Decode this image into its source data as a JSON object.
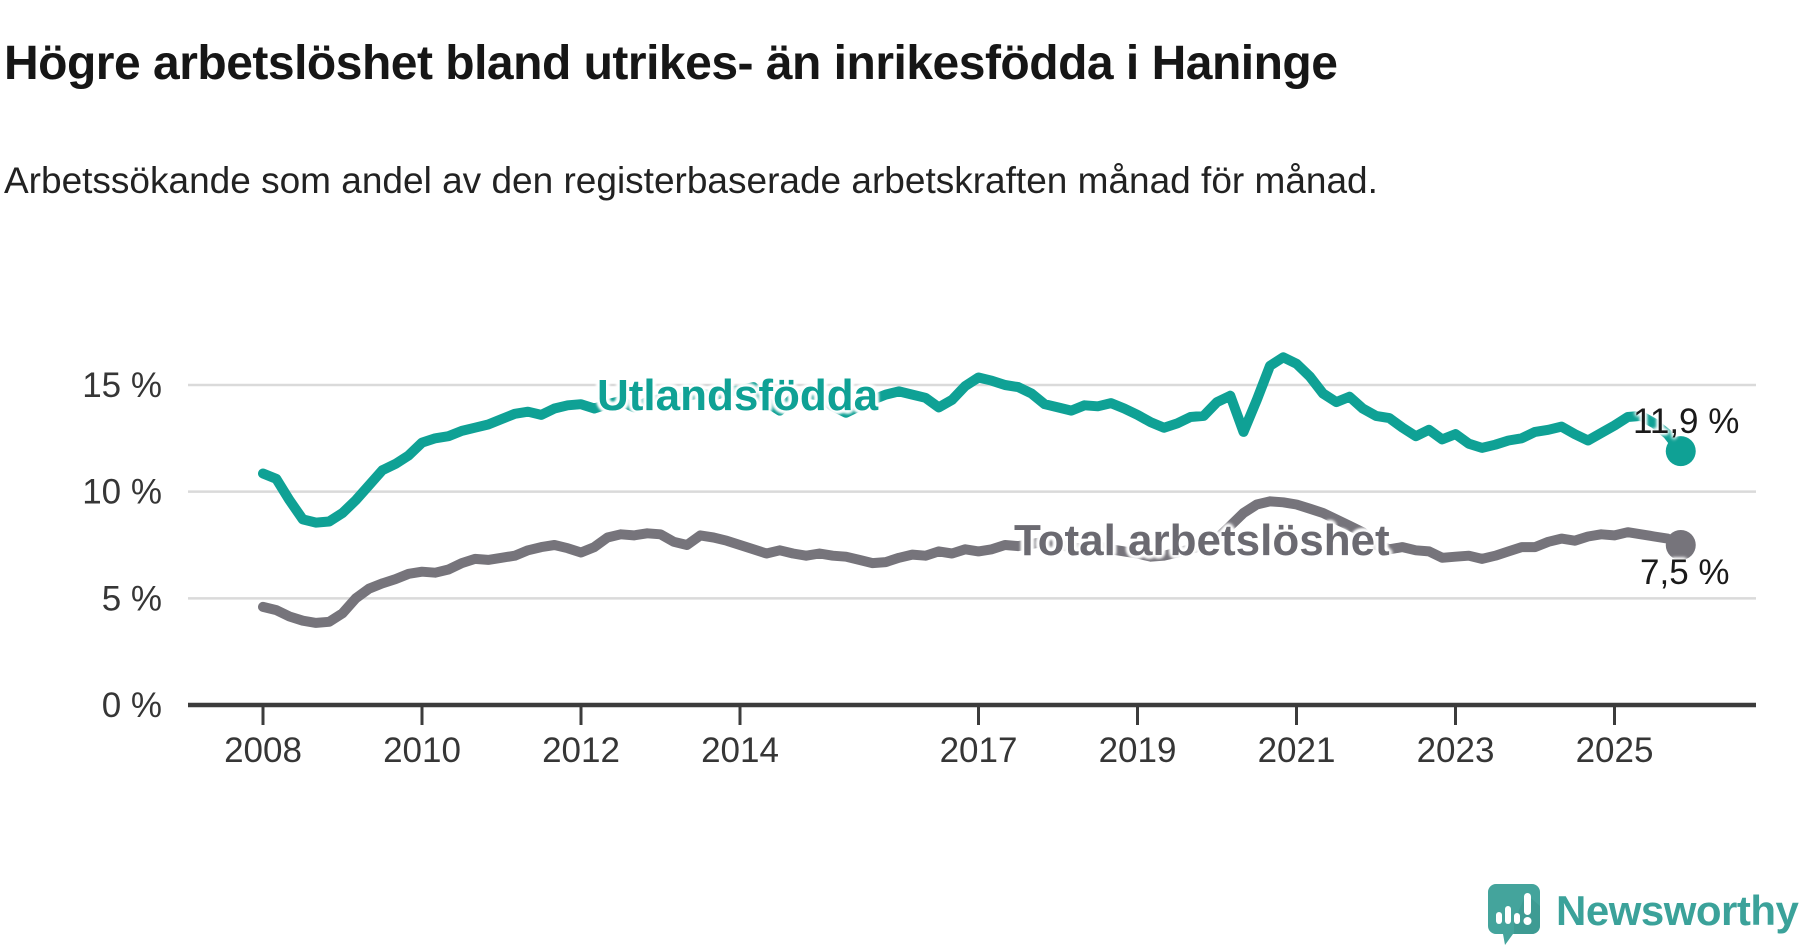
{
  "title": "Högre arbetslöshet bland utrikes- än inrikesfödda i Haninge",
  "subtitle": "Arbetssökande som andel av den registerbaserade arbetskraften månad för månad.",
  "colors": {
    "foreign_line": "#0fa195",
    "total_line": "#76747b",
    "total_label": "#6b6a71",
    "grid": "#dadada",
    "axis": "#3c3c3c",
    "axis_text": "#363636",
    "value_label_text": "#1a1a1a",
    "brand_teal": "#3ba29a"
  },
  "chart_data": {
    "type": "line",
    "title": "Högre arbetslöshet bland utrikes- än inrikesfödda i Haninge",
    "subtitle": "Arbetssökande som andel av den registerbaserade arbetskraften månad för månad.",
    "grid": true,
    "unit": "%",
    "x_start_year": 2008,
    "x_step_months": 2,
    "x_axis": {
      "tick_years": [
        2008,
        2010,
        2012,
        2014,
        2017,
        2019,
        2021,
        2023,
        2025
      ],
      "tick_labels": [
        "2008",
        "2010",
        "2012",
        "2014",
        "2017",
        "2019",
        "2021",
        "2023",
        "2025"
      ]
    },
    "y_axis": {
      "tick_values": [
        0,
        5,
        10,
        15
      ],
      "tick_labels": [
        "0 %",
        "5 %",
        "10 %",
        "15 %"
      ],
      "range": [
        0,
        16.8
      ]
    },
    "legend_position": "inline-line-labels",
    "series": [
      {
        "name": "Utlandsfödda",
        "color": "#0fa195",
        "end_value": 11.9,
        "end_value_label": "11,9 %",
        "values": [
          10.85,
          10.6,
          9.6,
          8.7,
          8.55,
          8.6,
          9.0,
          9.6,
          10.3,
          11.0,
          11.3,
          11.7,
          12.3,
          12.5,
          12.6,
          12.85,
          13.0,
          13.15,
          13.4,
          13.65,
          13.75,
          13.6,
          13.9,
          14.05,
          14.1,
          13.9,
          14.1,
          14.25,
          13.95,
          14.2,
          14.35,
          14.3,
          14.5,
          14.6,
          14.5,
          14.7,
          14.75,
          14.9,
          14.2,
          13.8,
          14.4,
          14.6,
          14.5,
          14.0,
          13.7,
          14.0,
          14.3,
          14.55,
          14.7,
          14.55,
          14.4,
          13.95,
          14.3,
          14.95,
          15.35,
          15.2,
          15.0,
          14.9,
          14.6,
          14.1,
          13.95,
          13.8,
          14.05,
          14.0,
          14.15,
          13.9,
          13.6,
          13.25,
          13.0,
          13.2,
          13.5,
          13.55,
          14.2,
          14.5,
          12.8,
          14.3,
          15.9,
          16.3,
          16.0,
          15.4,
          14.6,
          14.2,
          14.45,
          13.9,
          13.55,
          13.45,
          13.0,
          12.6,
          12.9,
          12.45,
          12.7,
          12.25,
          12.05,
          12.2,
          12.4,
          12.5,
          12.8,
          12.9,
          13.05,
          12.7,
          12.4,
          12.75,
          13.1,
          13.5,
          13.55,
          13.2,
          12.7,
          11.9
        ]
      },
      {
        "name": "Total arbetslöshet",
        "color": "#76747b",
        "end_value": 7.5,
        "end_value_label": "7,5 %",
        "values": [
          4.6,
          4.45,
          4.15,
          3.95,
          3.85,
          3.9,
          4.3,
          5.0,
          5.45,
          5.7,
          5.9,
          6.15,
          6.25,
          6.2,
          6.35,
          6.65,
          6.85,
          6.8,
          6.9,
          7.0,
          7.25,
          7.4,
          7.5,
          7.35,
          7.15,
          7.4,
          7.85,
          8.0,
          7.95,
          8.05,
          8.0,
          7.65,
          7.5,
          7.95,
          7.85,
          7.7,
          7.5,
          7.3,
          7.1,
          7.25,
          7.1,
          7.0,
          7.1,
          7.0,
          6.95,
          6.8,
          6.65,
          6.7,
          6.9,
          7.05,
          7.0,
          7.2,
          7.1,
          7.3,
          7.2,
          7.3,
          7.5,
          7.45,
          7.55,
          7.65,
          7.5,
          7.4,
          7.3,
          7.45,
          7.3,
          7.2,
          7.1,
          6.95,
          7.0,
          7.15,
          7.3,
          7.5,
          7.8,
          8.4,
          9.0,
          9.4,
          9.55,
          9.5,
          9.4,
          9.2,
          9.0,
          8.7,
          8.4,
          8.1,
          7.5,
          7.3,
          7.4,
          7.25,
          7.2,
          6.9,
          6.95,
          7.0,
          6.85,
          7.0,
          7.2,
          7.4,
          7.4,
          7.65,
          7.8,
          7.7,
          7.9,
          8.0,
          7.95,
          8.1,
          8.0,
          7.9,
          7.8,
          7.5
        ]
      }
    ]
  },
  "branding": {
    "name": "Newsworthy",
    "icon": "speech-bubble-bar-chart-icon"
  }
}
